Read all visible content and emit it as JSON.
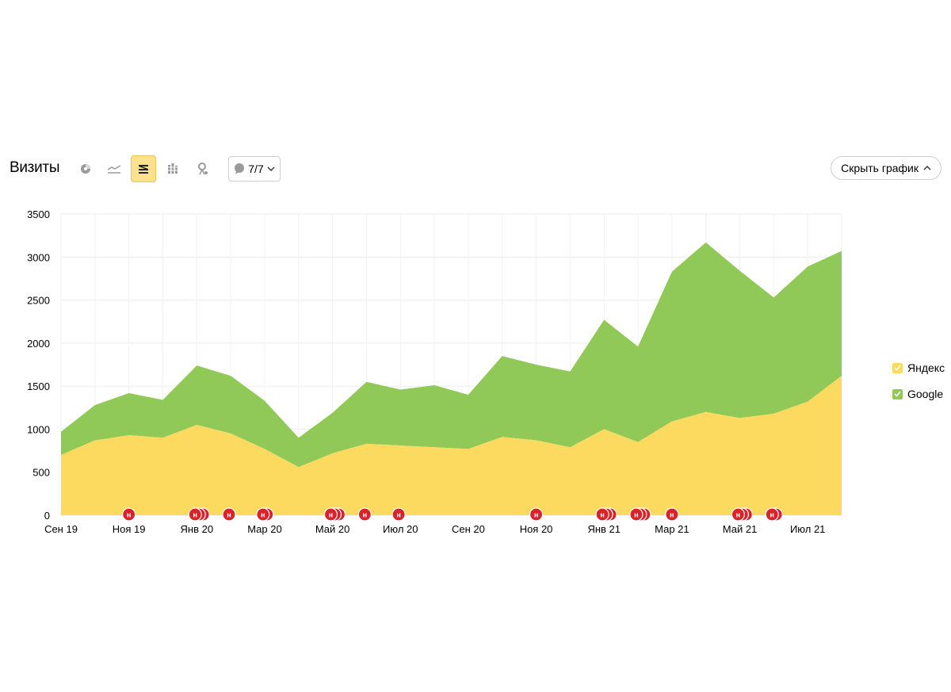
{
  "header": {
    "title": "Визиты",
    "notes_count": "7/7",
    "hide_chart_label": "Скрыть график"
  },
  "toolbar": {
    "buttons": [
      {
        "icon": "pie-chart-icon",
        "active": false
      },
      {
        "icon": "line-chart-icon",
        "active": false
      },
      {
        "icon": "stacked-area-icon",
        "active": true
      },
      {
        "icon": "bar-chart-icon",
        "active": false
      },
      {
        "icon": "map-pin-icon",
        "active": false
      }
    ]
  },
  "legend": {
    "items": [
      {
        "label": "Яндекс",
        "color": "#fcd95f",
        "checked": true
      },
      {
        "label": "Google",
        "color": "#90c957",
        "checked": true
      }
    ]
  },
  "chart_data": {
    "type": "area",
    "stacked": true,
    "x": [
      "2019-09",
      "2019-10",
      "2019-11",
      "2019-12",
      "2020-01",
      "2020-02",
      "2020-03",
      "2020-04",
      "2020-05",
      "2020-06",
      "2020-07",
      "2020-08",
      "2020-09",
      "2020-10",
      "2020-11",
      "2020-12",
      "2021-01",
      "2021-02",
      "2021-03",
      "2021-04",
      "2021-05",
      "2021-06",
      "2021-07",
      "2021-08"
    ],
    "x_ticks": [
      {
        "label": "Сен 19",
        "index": 0
      },
      {
        "label": "Ноя 19",
        "index": 2
      },
      {
        "label": "Янв 20",
        "index": 4
      },
      {
        "label": "Мар 20",
        "index": 6
      },
      {
        "label": "Май 20",
        "index": 8
      },
      {
        "label": "Июл 20",
        "index": 10
      },
      {
        "label": "Сен 20",
        "index": 12
      },
      {
        "label": "Ноя 20",
        "index": 14
      },
      {
        "label": "Янв 21",
        "index": 16
      },
      {
        "label": "Мар 21",
        "index": 18
      },
      {
        "label": "Май 21",
        "index": 20
      },
      {
        "label": "Июл 21",
        "index": 22
      }
    ],
    "y_ticks": [
      "0",
      "500",
      "1000",
      "1500",
      "2000",
      "2500",
      "3000",
      "3500"
    ],
    "ylim": [
      0,
      3500
    ],
    "grid": true,
    "legend_position": "right",
    "series": [
      {
        "name": "Яндекс",
        "color": "#fcd95f",
        "values": [
          700,
          870,
          930,
          900,
          1050,
          950,
          770,
          560,
          720,
          830,
          810,
          790,
          770,
          910,
          870,
          790,
          1000,
          850,
          1090,
          1200,
          1130,
          1180,
          1320,
          1620
        ]
      },
      {
        "name": "Google",
        "color": "#90c957",
        "values": [
          270,
          410,
          490,
          440,
          690,
          670,
          560,
          340,
          470,
          720,
          650,
          720,
          630,
          940,
          880,
          880,
          1270,
          1110,
          1740,
          1970,
          1710,
          1350,
          1570,
          1450
        ]
      }
    ],
    "annotations": [
      {
        "index": 2.0,
        "count": 1
      },
      {
        "index": 3.95,
        "count": 3
      },
      {
        "index": 4.95,
        "count": 1
      },
      {
        "index": 5.95,
        "count": 2
      },
      {
        "index": 7.95,
        "count": 3
      },
      {
        "index": 8.95,
        "count": 1
      },
      {
        "index": 9.95,
        "count": 1
      },
      {
        "index": 14.0,
        "count": 1
      },
      {
        "index": 15.95,
        "count": 3
      },
      {
        "index": 16.95,
        "count": 3
      },
      {
        "index": 18.0,
        "count": 1
      },
      {
        "index": 19.95,
        "count": 3
      },
      {
        "index": 20.95,
        "count": 2
      }
    ]
  }
}
